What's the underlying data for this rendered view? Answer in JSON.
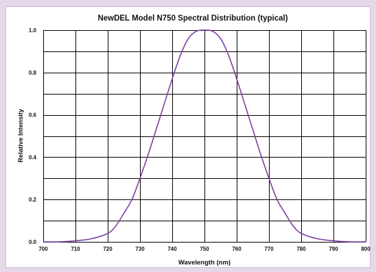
{
  "colors": {
    "page_background": "#e4d8ea",
    "plot_background": "#ffffff",
    "grid": "#000000",
    "curve": "#7b3fa3"
  },
  "chart_data": {
    "type": "line",
    "title": "NewDEL Model N750 Spectral Distribution (typical)",
    "xlabel": "Wavelength (nm)",
    "ylabel": "Relative Intensity",
    "xlim": [
      700,
      800
    ],
    "ylim": [
      0,
      1.0
    ],
    "x_ticks": [
      "700",
      "710",
      "720",
      "730",
      "740",
      "750",
      "760",
      "770",
      "780",
      "790",
      "800"
    ],
    "y_ticks": [
      "0.0",
      "0.2",
      "0.4",
      "0.6",
      "0.8",
      "1.0"
    ],
    "grid": true,
    "legend": "none",
    "series": [
      {
        "color": "#7b3fa3",
        "x": [
          700,
          705,
          710,
          715,
          720,
          722.5,
          725,
          727.5,
          730,
          732.5,
          735,
          737.5,
          740,
          742.5,
          745,
          747.5,
          750,
          752.5,
          755,
          757.5,
          760,
          762.5,
          765,
          767.5,
          770,
          772.5,
          775,
          777.5,
          780,
          785,
          790,
          795,
          800
        ],
        "y": [
          0.0,
          0.0,
          0.005,
          0.015,
          0.04,
          0.075,
          0.135,
          0.2,
          0.3,
          0.41,
          0.53,
          0.65,
          0.77,
          0.88,
          0.96,
          0.995,
          1.0,
          0.995,
          0.96,
          0.88,
          0.77,
          0.65,
          0.53,
          0.41,
          0.3,
          0.2,
          0.135,
          0.075,
          0.04,
          0.015,
          0.005,
          0.0,
          0.0
        ]
      }
    ]
  }
}
